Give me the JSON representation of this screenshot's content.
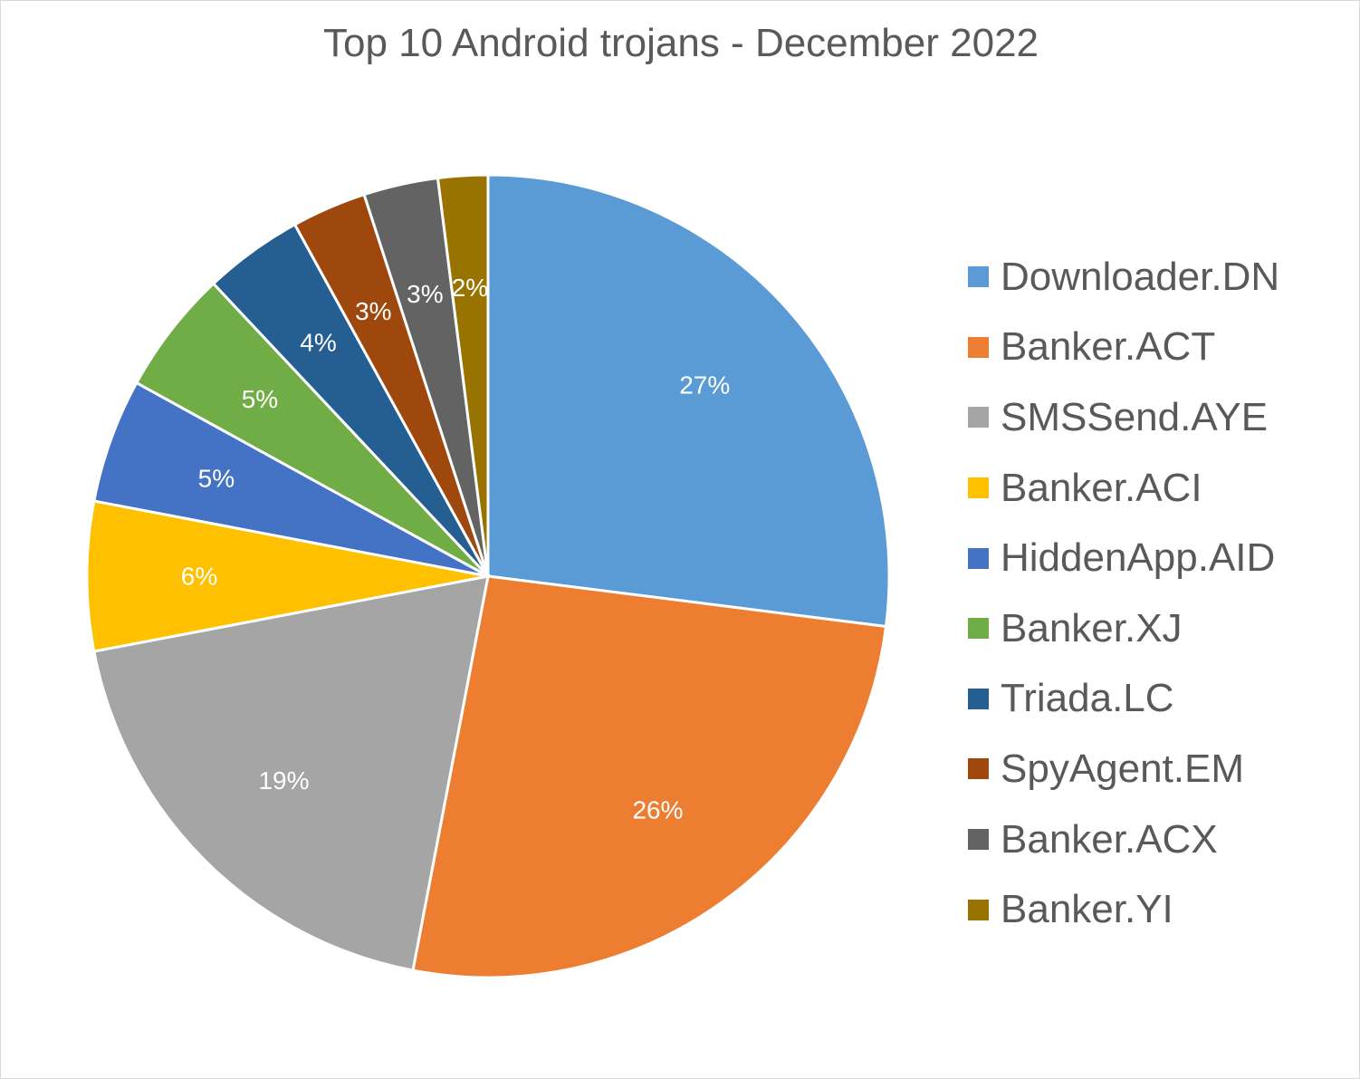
{
  "chart_data": {
    "type": "pie",
    "title": "Top 10 Android trojans - December 2022",
    "legend_position": "right",
    "slices": [
      {
        "name": "Downloader.DN",
        "value": 27,
        "label": "27%",
        "color": "#5b9bd5"
      },
      {
        "name": "Banker.ACT",
        "value": 26,
        "label": "26%",
        "color": "#ed7d31"
      },
      {
        "name": "SMSSend.AYE",
        "value": 19,
        "label": "19%",
        "color": "#a5a5a5"
      },
      {
        "name": "Banker.ACI",
        "value": 6,
        "label": "6%",
        "color": "#ffc000"
      },
      {
        "name": "HiddenApp.AID",
        "value": 5,
        "label": "5%",
        "color": "#4472c4"
      },
      {
        "name": "Banker.XJ",
        "value": 5,
        "label": "5%",
        "color": "#70ad47"
      },
      {
        "name": "Triada.LC",
        "value": 4,
        "label": "4%",
        "color": "#255e91"
      },
      {
        "name": "SpyAgent.EM",
        "value": 3,
        "label": "3%",
        "color": "#9e480e"
      },
      {
        "name": "Banker.ACX",
        "value": 3,
        "label": "3%",
        "color": "#636363"
      },
      {
        "name": "Banker.YI",
        "value": 2,
        "label": "2%",
        "color": "#997300"
      }
    ]
  }
}
